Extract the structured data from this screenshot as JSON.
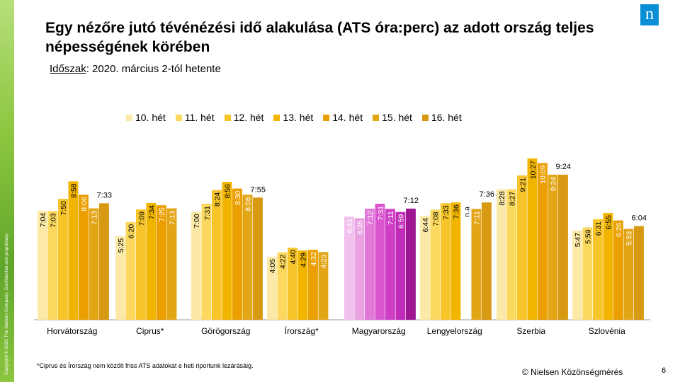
{
  "header": {
    "title": "Egy nézőre jutó tévénézési idő alakulása (ATS óra:perc) az adott ország teljes népességének körében",
    "subtitle_label": "Időszak",
    "subtitle_text": ": 2020. március 2-tól hetente",
    "logo_text": "n"
  },
  "footer": {
    "footnote": "*Ciprus és Írország nem közölt friss ATS adatokat e heti riportunk lezárásáig.",
    "source": "© Nielsen Közönségmérés",
    "page_number": "6",
    "copyright": "Copyright © 2020 The Nielsen Company. Confidential and proprietary."
  },
  "chart_data": {
    "type": "bar",
    "categories": [
      "Horvátország",
      "Ciprus*",
      "Görögország",
      "Írország*",
      "Magyarország",
      "Lengyelország",
      "Szerbia",
      "Szlovénia"
    ],
    "series_names": [
      "10. hét",
      "11. hét",
      "12. hét",
      "13. hét",
      "14. hét",
      "15. hét",
      "16. hét"
    ],
    "colors": [
      "#fce9a8",
      "#fcd95e",
      "#f7c52a",
      "#f1b500",
      "#eb9f00",
      "#e2a516",
      "#d79a12"
    ],
    "highlight_category": "Magyarország",
    "highlight_colors": [
      "#f2c0ec",
      "#e9a2e2",
      "#e178d9",
      "#d956cf",
      "#cf3fc6",
      "#c02cb7",
      "#a01794"
    ],
    "ylim": [
      0,
      660
    ],
    "values": [
      [
        424,
        423,
        470,
        538,
        486,
        433,
        453
      ],
      [
        325,
        380,
        429,
        454,
        445,
        433,
        null
      ],
      [
        420,
        451,
        504,
        536,
        510,
        486,
        475
      ],
      [
        245,
        262,
        280,
        269,
        272,
        263,
        null
      ],
      [
        401,
        395,
        432,
        451,
        431,
        419,
        432
      ],
      [
        404,
        428,
        453,
        456,
        null,
        431,
        456
      ],
      [
        508,
        507,
        561,
        627,
        609,
        564,
        564
      ],
      [
        347,
        359,
        391,
        415,
        386,
        353,
        364
      ]
    ],
    "labels": [
      [
        "7:04",
        "7:03",
        "7:50",
        "8:58",
        "8:06",
        "7:13",
        "7:33"
      ],
      [
        "5:25",
        "6:20",
        "7:09",
        "7:34",
        "7:25",
        "7:13",
        ""
      ],
      [
        "7:00",
        "7:31",
        "8:24",
        "8:56",
        "8:30",
        "8:06",
        "7:55"
      ],
      [
        "4:05",
        "4:22",
        "4:40",
        "4:29",
        "4:32",
        "4:23",
        ""
      ],
      [
        "6:41",
        "6:35",
        "7:12",
        "7:31",
        "7:11",
        "6:59",
        "7:12"
      ],
      [
        "6:44",
        "7:08",
        "7:33",
        "7:36",
        "n.a",
        "7:11",
        "7:36"
      ],
      [
        "8:28",
        "8:27",
        "9:21",
        "10:27",
        "10:09",
        "9:24",
        "9:24"
      ],
      [
        "5:47",
        "5:59",
        "6:31",
        "6:55",
        "6:26",
        "5:53",
        "6:04"
      ]
    ]
  }
}
